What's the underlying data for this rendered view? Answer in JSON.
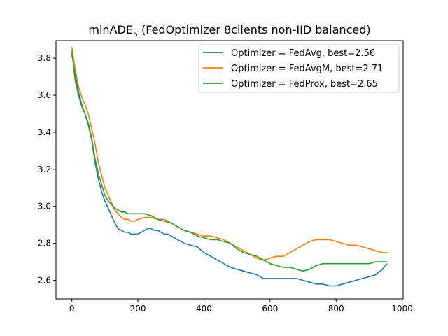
{
  "chart_data": {
    "type": "line",
    "title_main": "minADE",
    "title_sub": "5",
    "title_rest": " (FedOptimizer 8clients non-IID balanced)",
    "xlabel": "",
    "ylabel": "",
    "xlim": [
      -48,
      1003
    ],
    "ylim": [
      2.5,
      3.895
    ],
    "xticks": [
      0,
      200,
      400,
      600,
      800,
      1000
    ],
    "xtick_labels": [
      "0",
      "200",
      "400",
      "600",
      "800",
      "1000"
    ],
    "yticks": [
      2.6,
      2.8,
      3.0,
      3.2,
      3.4,
      3.6,
      3.8
    ],
    "ytick_labels": [
      "2.6",
      "2.8",
      "3.0",
      "3.2",
      "3.4",
      "3.6",
      "3.8"
    ],
    "grid": false,
    "legend_position": "top-right",
    "series": [
      {
        "name": "Optimizer = FedAvg, best=2.56",
        "color": "#1f77b4",
        "x": [
          0,
          10,
          20,
          30,
          40,
          50,
          60,
          70,
          80,
          90,
          100,
          110,
          120,
          130,
          140,
          150,
          160,
          170,
          180,
          190,
          200,
          210,
          220,
          230,
          240,
          250,
          260,
          270,
          280,
          290,
          300,
          320,
          340,
          360,
          380,
          400,
          420,
          440,
          460,
          480,
          500,
          520,
          540,
          560,
          580,
          600,
          620,
          640,
          660,
          680,
          700,
          720,
          740,
          760,
          780,
          800,
          820,
          840,
          860,
          880,
          900,
          920,
          940,
          955
        ],
        "values": [
          3.82,
          3.72,
          3.62,
          3.55,
          3.5,
          3.44,
          3.36,
          3.24,
          3.15,
          3.08,
          3.03,
          2.99,
          2.95,
          2.91,
          2.88,
          2.87,
          2.86,
          2.86,
          2.85,
          2.85,
          2.85,
          2.86,
          2.87,
          2.88,
          2.88,
          2.87,
          2.87,
          2.86,
          2.85,
          2.85,
          2.84,
          2.82,
          2.8,
          2.79,
          2.78,
          2.75,
          2.73,
          2.71,
          2.69,
          2.67,
          2.66,
          2.65,
          2.64,
          2.63,
          2.61,
          2.61,
          2.61,
          2.61,
          2.61,
          2.61,
          2.6,
          2.59,
          2.58,
          2.58,
          2.57,
          2.57,
          2.58,
          2.59,
          2.6,
          2.61,
          2.62,
          2.63,
          2.66,
          2.69
        ]
      },
      {
        "name": "Optimizer = FedAvgM, best=2.71",
        "color": "#ff7f0e",
        "x": [
          0,
          10,
          20,
          30,
          40,
          50,
          60,
          70,
          80,
          90,
          100,
          110,
          120,
          130,
          140,
          150,
          160,
          170,
          180,
          190,
          200,
          220,
          240,
          260,
          280,
          300,
          320,
          340,
          360,
          380,
          400,
          420,
          440,
          460,
          480,
          500,
          520,
          540,
          560,
          580,
          600,
          620,
          640,
          660,
          680,
          700,
          720,
          740,
          760,
          780,
          800,
          820,
          840,
          860,
          880,
          900,
          920,
          940,
          955
        ],
        "values": [
          3.86,
          3.74,
          3.65,
          3.59,
          3.55,
          3.5,
          3.42,
          3.34,
          3.24,
          3.17,
          3.1,
          3.06,
          3.02,
          2.98,
          2.96,
          2.94,
          2.93,
          2.93,
          2.92,
          2.92,
          2.93,
          2.94,
          2.94,
          2.93,
          2.93,
          2.91,
          2.89,
          2.87,
          2.86,
          2.85,
          2.84,
          2.84,
          2.83,
          2.82,
          2.8,
          2.78,
          2.76,
          2.74,
          2.72,
          2.71,
          2.72,
          2.73,
          2.73,
          2.75,
          2.77,
          2.79,
          2.81,
          2.82,
          2.82,
          2.82,
          2.81,
          2.8,
          2.79,
          2.79,
          2.78,
          2.77,
          2.76,
          2.75,
          2.75
        ]
      },
      {
        "name": "Optimizer = FedProx, best=2.65",
        "color": "#2ca02c",
        "x": [
          0,
          10,
          20,
          30,
          40,
          50,
          60,
          70,
          80,
          90,
          100,
          110,
          120,
          130,
          140,
          150,
          160,
          170,
          180,
          190,
          200,
          220,
          240,
          260,
          280,
          300,
          320,
          340,
          360,
          380,
          400,
          420,
          440,
          460,
          480,
          500,
          520,
          540,
          560,
          580,
          600,
          620,
          640,
          660,
          680,
          700,
          720,
          740,
          760,
          780,
          800,
          820,
          840,
          860,
          880,
          900,
          920,
          940,
          955
        ],
        "values": [
          3.84,
          3.68,
          3.6,
          3.54,
          3.5,
          3.45,
          3.37,
          3.26,
          3.18,
          3.12,
          3.06,
          3.03,
          3.01,
          2.99,
          2.98,
          2.97,
          2.97,
          2.96,
          2.96,
          2.96,
          2.96,
          2.96,
          2.95,
          2.93,
          2.92,
          2.91,
          2.89,
          2.87,
          2.86,
          2.84,
          2.83,
          2.82,
          2.82,
          2.81,
          2.8,
          2.77,
          2.75,
          2.74,
          2.73,
          2.71,
          2.69,
          2.68,
          2.67,
          2.67,
          2.66,
          2.65,
          2.66,
          2.68,
          2.69,
          2.69,
          2.69,
          2.69,
          2.69,
          2.69,
          2.69,
          2.69,
          2.7,
          2.7,
          2.7
        ]
      }
    ]
  }
}
